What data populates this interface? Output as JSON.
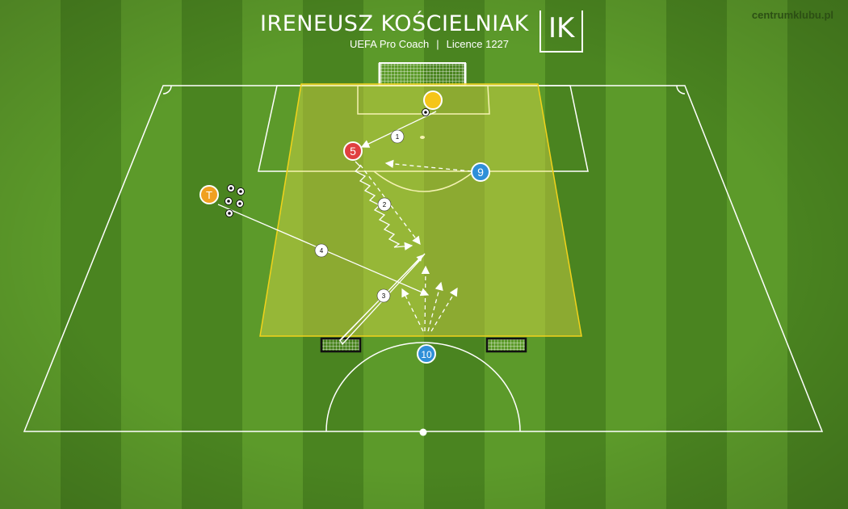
{
  "header": {
    "title": "IRENEUSZ KOŚCIELNIAK",
    "subtitle_role": "UEFA Pro Coach",
    "subtitle_separator": "|",
    "subtitle_licence": "Licence 1227",
    "logo_text": "IK",
    "site": "centrumklubu.pl"
  },
  "colors": {
    "pitch_dark": "#4a8420",
    "pitch_light": "#5c9a2a",
    "zone_fill": "#e8e04a",
    "zone_border": "#f2d21a",
    "player_red": "#e04040",
    "player_blue": "#2f8fd8",
    "player_yellow": "#f5c518",
    "coach_orange": "#f0a020",
    "line": "#ffffff"
  },
  "players": [
    {
      "id": "goalkeeper",
      "label": "",
      "color": "yellow"
    },
    {
      "id": "5",
      "label": "5",
      "color": "red"
    },
    {
      "id": "9",
      "label": "9",
      "color": "blue"
    },
    {
      "id": "10",
      "label": "10",
      "color": "blue"
    },
    {
      "id": "coach",
      "label": "T",
      "color": "orange"
    }
  ],
  "sequence_labels": [
    "1",
    "2",
    "3",
    "4"
  ],
  "icons": [
    "ball-icon",
    "mini-goal-icon",
    "full-goal-icon"
  ]
}
